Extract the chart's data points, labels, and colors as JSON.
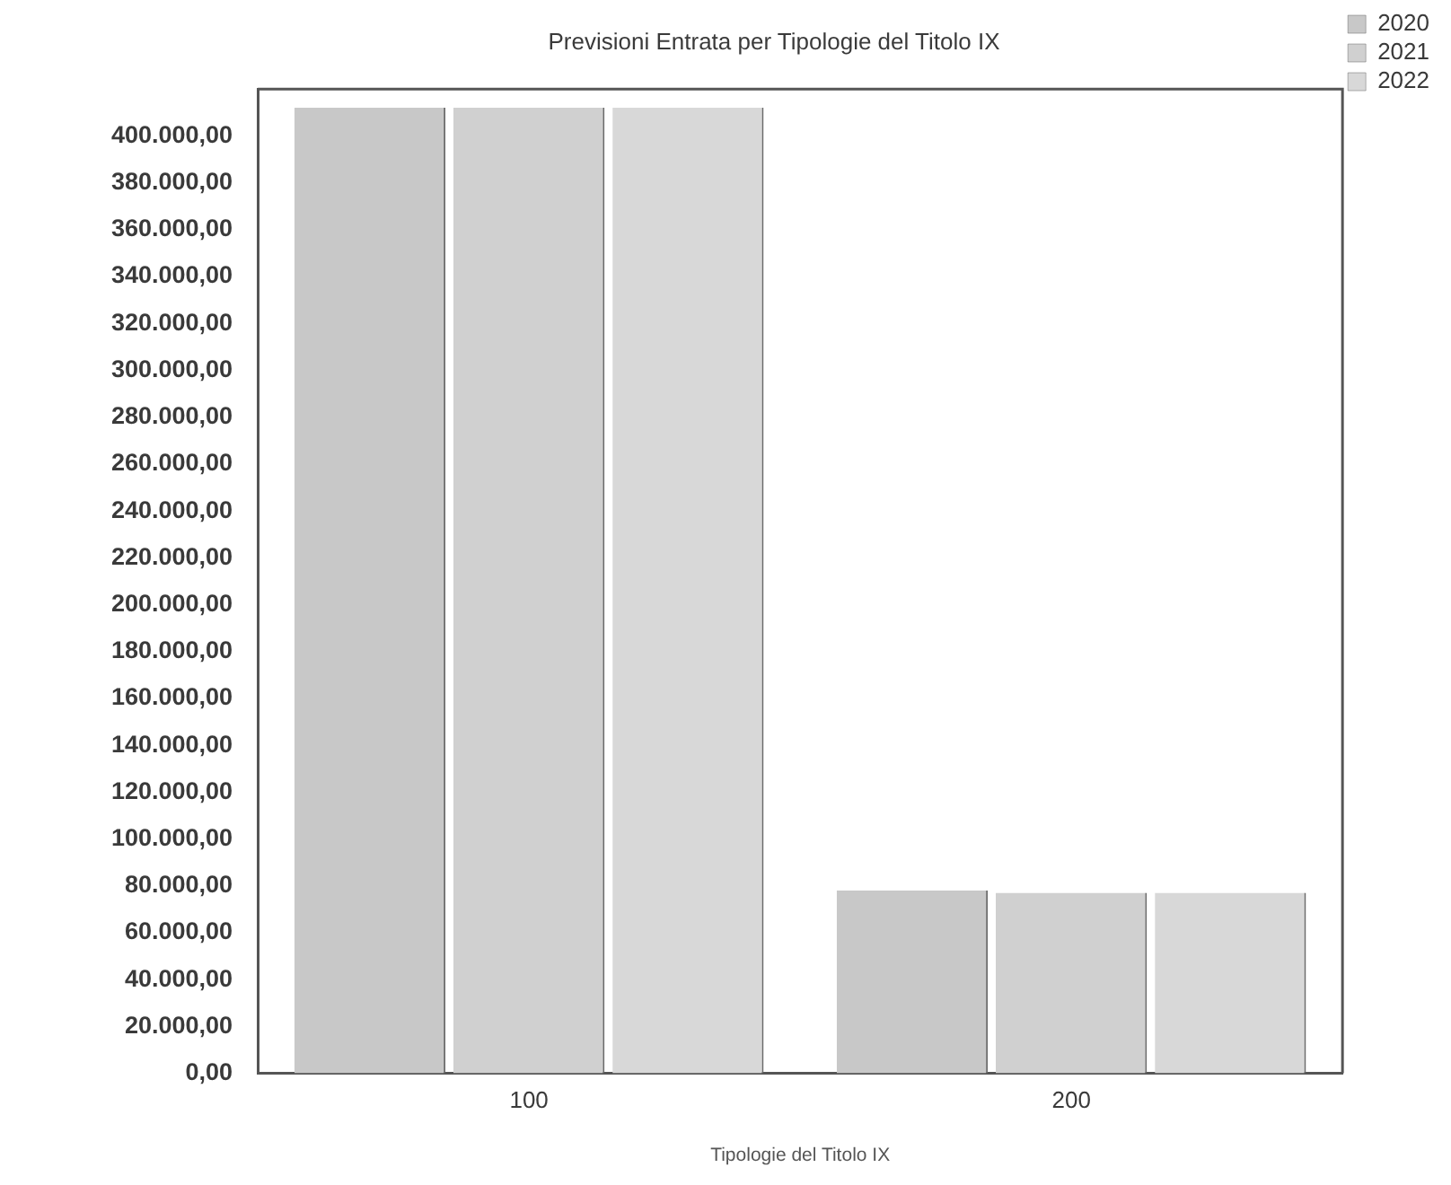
{
  "chart_data": {
    "type": "bar",
    "title": "Previsioni Entrata per Tipologie del Titolo IX",
    "xlabel": "Tipologie del Titolo IX",
    "categories": [
      "100",
      "200"
    ],
    "series": [
      {
        "name": "2020",
        "color": "#c8c8c8",
        "values": [
          412000,
          78000
        ]
      },
      {
        "name": "2021",
        "color": "#d0d0d0",
        "values": [
          412000,
          77000
        ]
      },
      {
        "name": "2022",
        "color": "#d8d8d8",
        "values": [
          412000,
          77000
        ]
      }
    ],
    "ylim": [
      0,
      420000
    ],
    "yticks": [
      {
        "value": 0,
        "label": "0,00"
      },
      {
        "value": 20000,
        "label": "20.000,00"
      },
      {
        "value": 40000,
        "label": "40.000,00"
      },
      {
        "value": 60000,
        "label": "60.000,00"
      },
      {
        "value": 80000,
        "label": "80.000,00"
      },
      {
        "value": 100000,
        "label": "100.000,00"
      },
      {
        "value": 120000,
        "label": "120.000,00"
      },
      {
        "value": 140000,
        "label": "140.000,00"
      },
      {
        "value": 160000,
        "label": "160.000,00"
      },
      {
        "value": 180000,
        "label": "180.000,00"
      },
      {
        "value": 200000,
        "label": "200.000,00"
      },
      {
        "value": 220000,
        "label": "220.000,00"
      },
      {
        "value": 240000,
        "label": "240.000,00"
      },
      {
        "value": 260000,
        "label": "260.000,00"
      },
      {
        "value": 280000,
        "label": "280.000,00"
      },
      {
        "value": 300000,
        "label": "300.000,00"
      },
      {
        "value": 320000,
        "label": "320.000,00"
      },
      {
        "value": 340000,
        "label": "340.000,00"
      },
      {
        "value": 360000,
        "label": "360.000,00"
      },
      {
        "value": 380000,
        "label": "380.000,00"
      },
      {
        "value": 400000,
        "label": "400.000,00"
      }
    ],
    "grid": false,
    "legend": "top right"
  }
}
